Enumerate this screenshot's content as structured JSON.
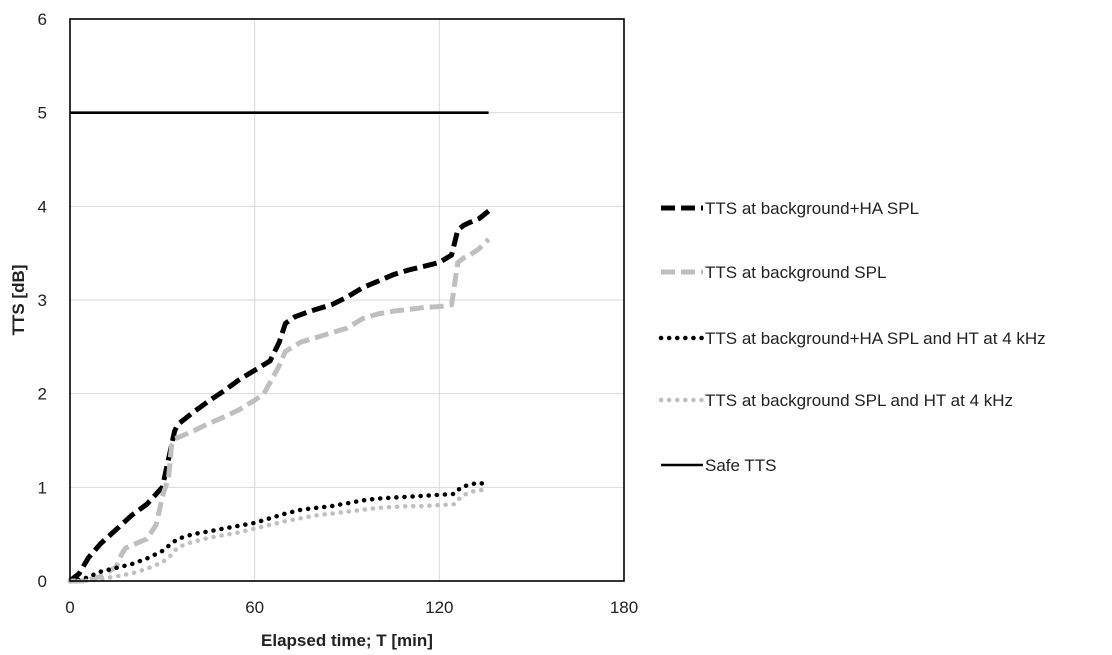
{
  "chart_data": {
    "type": "line",
    "title": "",
    "xlabel": "Elapsed time; T [min]",
    "ylabel": "TTS [dB]",
    "xlim": [
      0,
      180
    ],
    "ylim": [
      0,
      6
    ],
    "xticks": [
      0,
      60,
      120,
      180
    ],
    "yticks": [
      0,
      1,
      2,
      3,
      4,
      5,
      6
    ],
    "grid": true,
    "legend_position": "right",
    "series": [
      {
        "name": "TTS at background+HA SPL",
        "color": "#000000",
        "style": "dashed",
        "x": [
          0,
          3,
          6,
          10,
          15,
          20,
          25,
          30,
          32,
          34,
          35,
          40,
          45,
          50,
          55,
          60,
          65,
          68,
          70,
          73,
          78,
          85,
          90,
          95,
          100,
          105,
          110,
          115,
          120,
          124,
          126,
          128,
          130,
          133,
          136
        ],
        "y": [
          0,
          0.08,
          0.25,
          0.4,
          0.55,
          0.7,
          0.82,
          1.0,
          1.3,
          1.6,
          1.67,
          1.8,
          1.92,
          2.03,
          2.15,
          2.25,
          2.35,
          2.55,
          2.75,
          2.82,
          2.88,
          2.95,
          3.03,
          3.13,
          3.2,
          3.27,
          3.32,
          3.36,
          3.4,
          3.48,
          3.75,
          3.8,
          3.83,
          3.87,
          3.95
        ]
      },
      {
        "name": "TTS at background SPL",
        "color": "#bfbfbf",
        "style": "dashed",
        "x": [
          0,
          5,
          10,
          15,
          17,
          18,
          20,
          25,
          28,
          30,
          32,
          33,
          34,
          35,
          40,
          45,
          50,
          55,
          60,
          63,
          65,
          68,
          70,
          75,
          80,
          85,
          90,
          95,
          100,
          105,
          110,
          115,
          120,
          124,
          126,
          128,
          130,
          133,
          136
        ],
        "y": [
          0,
          0,
          0.05,
          0.15,
          0.3,
          0.35,
          0.38,
          0.45,
          0.6,
          0.9,
          1.1,
          1.45,
          1.52,
          1.53,
          1.6,
          1.68,
          1.75,
          1.83,
          1.93,
          2.0,
          2.12,
          2.3,
          2.45,
          2.55,
          2.6,
          2.65,
          2.7,
          2.8,
          2.85,
          2.88,
          2.9,
          2.92,
          2.93,
          2.95,
          3.4,
          3.45,
          3.48,
          3.55,
          3.65
        ]
      },
      {
        "name": "TTS at background+HA SPL and  HT at 4 kHz",
        "color": "#000000",
        "style": "dotted",
        "x": [
          0,
          5,
          10,
          15,
          20,
          25,
          30,
          33,
          35,
          40,
          45,
          50,
          55,
          60,
          65,
          70,
          75,
          80,
          85,
          90,
          95,
          100,
          105,
          110,
          115,
          120,
          125,
          127,
          130,
          133,
          136
        ],
        "y": [
          0,
          0.03,
          0.1,
          0.14,
          0.18,
          0.24,
          0.32,
          0.4,
          0.45,
          0.5,
          0.53,
          0.56,
          0.59,
          0.62,
          0.67,
          0.72,
          0.76,
          0.78,
          0.8,
          0.83,
          0.86,
          0.88,
          0.89,
          0.9,
          0.91,
          0.92,
          0.93,
          1.0,
          1.03,
          1.05,
          1.02
        ]
      },
      {
        "name": "TTS at background SPL and HT at 4 kHz",
        "color": "#bfbfbf",
        "style": "dotted",
        "x": [
          0,
          5,
          10,
          15,
          20,
          25,
          30,
          33,
          35,
          40,
          45,
          50,
          55,
          60,
          65,
          70,
          75,
          80,
          85,
          90,
          95,
          100,
          105,
          110,
          115,
          120,
          125,
          127,
          130,
          133,
          136
        ],
        "y": [
          0,
          0,
          0.02,
          0.05,
          0.08,
          0.13,
          0.2,
          0.28,
          0.36,
          0.42,
          0.46,
          0.49,
          0.52,
          0.56,
          0.6,
          0.64,
          0.67,
          0.7,
          0.72,
          0.74,
          0.76,
          0.78,
          0.79,
          0.8,
          0.8,
          0.81,
          0.82,
          0.9,
          0.95,
          0.97,
          0.97
        ]
      },
      {
        "name": "Safe TTS",
        "color": "#000000",
        "style": "solid",
        "x": [
          0,
          136
        ],
        "y": [
          5,
          5
        ]
      }
    ]
  }
}
